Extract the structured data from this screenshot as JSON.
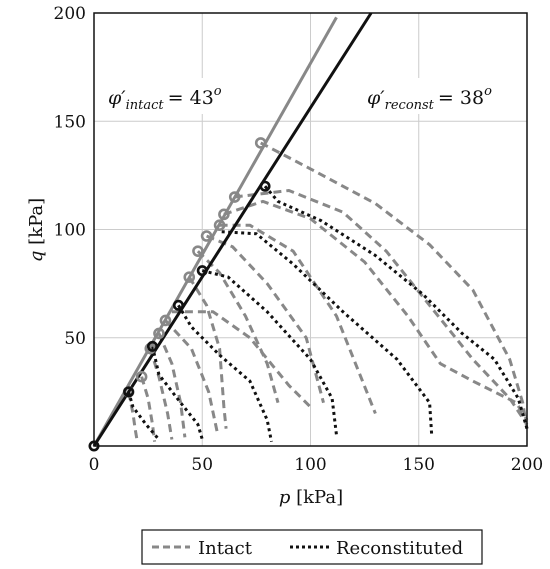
{
  "chart_data": {
    "type": "line",
    "xlabel_var": "p",
    "xlabel_unit": "[kPa]",
    "ylabel_var": "q",
    "ylabel_unit": "[kPa]",
    "xlim": [
      0,
      200
    ],
    "ylim": [
      0,
      200
    ],
    "xticks": [
      0,
      50,
      100,
      150,
      200
    ],
    "yticks": [
      50,
      100,
      150,
      200
    ],
    "grid": true,
    "legend_position": "bottom",
    "colors": {
      "intact": "#888888",
      "reconstituted": "#111111",
      "gridline": "#cccccc"
    },
    "annotations": [
      {
        "symbol": "φ′",
        "subscript": "intact",
        "equals": "= 43",
        "superscript": "o",
        "x": 7,
        "y": 160
      },
      {
        "symbol": "φ′",
        "subscript": "reconst",
        "equals": "= 38",
        "superscript": "o",
        "x": 128,
        "y": 160
      }
    ],
    "series": [
      {
        "name": "Intact",
        "style": "dashed",
        "failure_line": [
          [
            0,
            0
          ],
          [
            112,
            198
          ]
        ],
        "peaks": [
          [
            16,
            25
          ],
          [
            22,
            32
          ],
          [
            26,
            45
          ],
          [
            30,
            52
          ],
          [
            33,
            58
          ],
          [
            44,
            78
          ],
          [
            48,
            90
          ],
          [
            52,
            97
          ],
          [
            58,
            102
          ],
          [
            60,
            107
          ],
          [
            65,
            115
          ],
          [
            77,
            140
          ]
        ],
        "paths": [
          [
            [
              16,
              25
            ],
            [
              18,
              15
            ],
            [
              19,
              8
            ],
            [
              20,
              2
            ]
          ],
          [
            [
              22,
              32
            ],
            [
              25,
              22
            ],
            [
              27,
              10
            ],
            [
              28,
              2
            ]
          ],
          [
            [
              26,
              45
            ],
            [
              30,
              32
            ],
            [
              34,
              15
            ],
            [
              36,
              3
            ]
          ],
          [
            [
              30,
              52
            ],
            [
              36,
              38
            ],
            [
              40,
              20
            ],
            [
              42,
              4
            ]
          ],
          [
            [
              33,
              58
            ],
            [
              45,
              45
            ],
            [
              53,
              25
            ],
            [
              57,
              6
            ]
          ],
          [
            [
              44,
              78
            ],
            [
              52,
              65
            ],
            [
              58,
              45
            ],
            [
              60,
              18
            ],
            [
              61,
              8
            ]
          ],
          [
            [
              48,
              90
            ],
            [
              58,
              80
            ],
            [
              70,
              60
            ],
            [
              80,
              38
            ],
            [
              85,
              20
            ]
          ],
          [
            [
              52,
              97
            ],
            [
              64,
              92
            ],
            [
              80,
              75
            ],
            [
              98,
              50
            ],
            [
              106,
              20
            ]
          ],
          [
            [
              58,
              102
            ],
            [
              72,
              102
            ],
            [
              92,
              90
            ],
            [
              112,
              60
            ],
            [
              124,
              30
            ],
            [
              130,
              15
            ]
          ],
          [
            [
              60,
              107
            ],
            [
              78,
              113
            ],
            [
              100,
              105
            ],
            [
              125,
              85
            ],
            [
              145,
              60
            ],
            [
              160,
              38
            ],
            [
              175,
              30
            ],
            [
              195,
              20
            ],
            [
              200,
              12
            ]
          ],
          [
            [
              65,
              115
            ],
            [
              90,
              118
            ],
            [
              115,
              108
            ],
            [
              135,
              90
            ],
            [
              155,
              65
            ],
            [
              175,
              40
            ],
            [
              192,
              22
            ],
            [
              200,
              10
            ]
          ],
          [
            [
              77,
              140
            ],
            [
              100,
              128
            ],
            [
              130,
              112
            ],
            [
              155,
              93
            ],
            [
              175,
              72
            ],
            [
              192,
              40
            ],
            [
              198,
              20
            ],
            [
              200,
              8
            ]
          ],
          [
            [
              36,
              62
            ],
            [
              55,
              62
            ],
            [
              72,
              50
            ],
            [
              90,
              28
            ],
            [
              100,
              18
            ]
          ]
        ]
      },
      {
        "name": "Reconstituted",
        "style": "dotted",
        "failure_line": [
          [
            0,
            0
          ],
          [
            128,
            200
          ]
        ],
        "peaks": [
          [
            0,
            0
          ],
          [
            16,
            25
          ],
          [
            27,
            46
          ],
          [
            39,
            65
          ],
          [
            50,
            81
          ],
          [
            79,
            120
          ]
        ],
        "paths": [
          [
            [
              16,
              25
            ],
            [
              18,
              18
            ],
            [
              24,
              10
            ],
            [
              30,
              3
            ]
          ],
          [
            [
              27,
              46
            ],
            [
              30,
              33
            ],
            [
              40,
              20
            ],
            [
              48,
              10
            ],
            [
              50,
              3
            ]
          ],
          [
            [
              39,
              65
            ],
            [
              45,
              55
            ],
            [
              58,
              42
            ],
            [
              72,
              30
            ],
            [
              80,
              12
            ],
            [
              82,
              2
            ]
          ],
          [
            [
              50,
              81
            ],
            [
              62,
              78
            ],
            [
              80,
              62
            ],
            [
              100,
              40
            ],
            [
              110,
              22
            ],
            [
              112,
              5
            ]
          ],
          [
            [
              59,
              99
            ],
            [
              75,
              98
            ],
            [
              92,
              84
            ],
            [
              115,
              62
            ],
            [
              140,
              40
            ],
            [
              155,
              20
            ],
            [
              156,
              5
            ]
          ],
          [
            [
              79,
              120
            ],
            [
              85,
              113
            ],
            [
              105,
              104
            ],
            [
              130,
              88
            ],
            [
              152,
              70
            ],
            [
              170,
              52
            ],
            [
              185,
              40
            ],
            [
              196,
              22
            ],
            [
              200,
              8
            ]
          ]
        ]
      }
    ]
  }
}
